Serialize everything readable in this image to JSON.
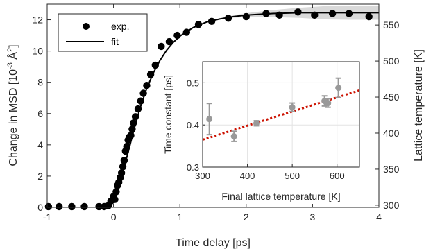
{
  "chart_data": [
    {
      "type": "scatter",
      "xlabel": "Time delay [ps]",
      "ylabel": "Change in MSD [10^-3 Å^2]",
      "ylabel_parts": {
        "prefix": "Change in MSD [10",
        "exp": "-3",
        "unit": " Å",
        "unit_exp": "2",
        "suffix": "]"
      },
      "y2label": "Lattice temperature [K]",
      "xlim": [
        -1,
        4
      ],
      "ylim": [
        0,
        13
      ],
      "y2lim": [
        297,
        579
      ],
      "xticks": [
        -1,
        0,
        1,
        2,
        3,
        4
      ],
      "yticks": [
        0,
        2,
        4,
        6,
        8,
        10,
        12
      ],
      "y2ticks": [
        300,
        350,
        400,
        450,
        500,
        550
      ],
      "grid": false,
      "legend": {
        "position": "top-left",
        "entries": [
          "exp.",
          "fit"
        ]
      },
      "series": [
        {
          "name": "exp.",
          "kind": "markers",
          "x": [
            -0.98,
            -0.82,
            -0.63,
            -0.44,
            -0.22,
            -0.14,
            -0.08,
            -0.04,
            0.0,
            0.02,
            0.04,
            0.06,
            0.08,
            0.1,
            0.12,
            0.14,
            0.16,
            0.18,
            0.2,
            0.22,
            0.24,
            0.26,
            0.28,
            0.3,
            0.33,
            0.37,
            0.41,
            0.45,
            0.5,
            0.56,
            0.63,
            0.72,
            0.84,
            0.96,
            1.1,
            1.28,
            1.48,
            1.73,
            2.0,
            2.3,
            2.5,
            2.78,
            3.03,
            3.3,
            3.55,
            3.85
          ],
          "y": [
            0.05,
            0.05,
            0.05,
            0.05,
            0.05,
            0.05,
            0.1,
            0.4,
            0.7,
            0.5,
            1.0,
            1.4,
            1.6,
            1.9,
            2.2,
            2.6,
            3.0,
            3.6,
            3.9,
            4.3,
            4.5,
            4.6,
            5.0,
            5.4,
            5.8,
            6.3,
            6.8,
            7.3,
            7.8,
            8.5,
            9.1,
            10.3,
            10.6,
            11.0,
            11.2,
            11.7,
            11.9,
            12.1,
            12.2,
            12.4,
            12.3,
            12.5,
            12.3,
            12.4,
            12.4,
            12.2
          ]
        },
        {
          "name": "fit",
          "kind": "line",
          "x": [
            -1.0,
            -0.5,
            -0.2,
            -0.15,
            -0.1,
            -0.05,
            0.0,
            0.05,
            0.1,
            0.15,
            0.2,
            0.25,
            0.3,
            0.35,
            0.4,
            0.5,
            0.6,
            0.7,
            0.8,
            0.9,
            1.0,
            1.2,
            1.4,
            1.6,
            1.8,
            2.0,
            2.4,
            2.8,
            3.2,
            3.6,
            4.0
          ],
          "y": [
            0.0,
            0.0,
            0.0,
            0.05,
            0.15,
            0.35,
            0.65,
            1.15,
            1.75,
            2.45,
            3.2,
            4.0,
            4.85,
            5.6,
            6.35,
            7.6,
            8.6,
            9.4,
            10.05,
            10.55,
            10.95,
            11.5,
            11.85,
            12.05,
            12.2,
            12.3,
            12.4,
            12.45,
            12.45,
            12.45,
            12.45
          ]
        }
      ]
    },
    {
      "type": "scatter",
      "xlabel": "Final lattice temperature [K]",
      "ylabel": "Time constant [ps]",
      "xlim": [
        300,
        650
      ],
      "ylim": [
        0.3,
        0.55
      ],
      "xticks": [
        300,
        400,
        500,
        600
      ],
      "yticks": [
        0.3,
        0.4,
        0.5
      ],
      "grid": true,
      "series": [
        {
          "kind": "errorbar",
          "color": "#999999",
          "x": [
            315,
            370,
            420,
            500,
            572,
            580,
            603
          ],
          "y": [
            0.414,
            0.373,
            0.404,
            0.442,
            0.457,
            0.452,
            0.488
          ],
          "err": [
            0.037,
            0.012,
            0.006,
            0.01,
            0.012,
            0.01,
            0.023
          ]
        },
        {
          "kind": "dotted-line",
          "color": "#cc1100",
          "x": [
            300,
            650
          ],
          "y": [
            0.365,
            0.482
          ]
        }
      ]
    }
  ]
}
